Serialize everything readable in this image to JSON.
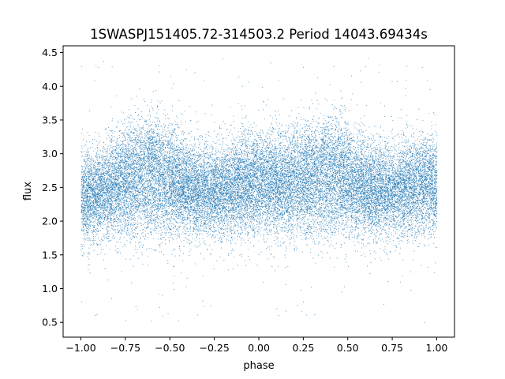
{
  "chart_data": {
    "type": "scatter",
    "title": "1SWASPJ151405.72-314503.2 Period 14043.69434s",
    "xlabel": "phase",
    "ylabel": "flux",
    "xlim": [
      -1.1,
      1.1
    ],
    "ylim": [
      0.28,
      4.6
    ],
    "x_ticks": [
      "−1.00",
      "−0.75",
      "−0.50",
      "−0.25",
      "0.00",
      "0.25",
      "0.50",
      "0.75",
      "1.00"
    ],
    "x_tick_values": [
      -1.0,
      -0.75,
      -0.5,
      -0.25,
      0.0,
      0.25,
      0.5,
      0.75,
      1.0
    ],
    "y_ticks": [
      "0.5",
      "1.0",
      "1.5",
      "2.0",
      "2.5",
      "3.0",
      "3.5",
      "4.0",
      "4.5"
    ],
    "y_tick_values": [
      0.5,
      1.0,
      1.5,
      2.0,
      2.5,
      3.0,
      3.5,
      4.0,
      4.5
    ],
    "grid": false,
    "marker_color": "#1f77b4",
    "series": [
      {
        "x_range": [
          -1.0,
          1.0
        ],
        "period_in_phase": 1.0,
        "baseline_flux": 2.3,
        "hump_flux": 3.1,
        "hump_phase": [
          -0.62,
          0.38
        ],
        "hump_halfwidth": 0.25,
        "secondary_flux": 2.55,
        "secondary_phase": [
          -0.05,
          0.95
        ],
        "scatter_sigma": 0.33,
        "outlier_range": [
          0.45,
          4.45
        ]
      }
    ]
  }
}
